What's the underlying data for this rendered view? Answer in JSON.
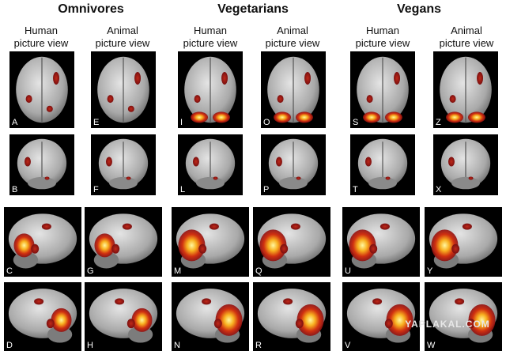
{
  "groups": [
    {
      "title": "Omnivores",
      "columns": [
        {
          "lines": [
            "Human",
            "picture view"
          ],
          "panels": [
            "A",
            "B",
            "C",
            "D"
          ]
        },
        {
          "lines": [
            "Animal",
            "picture view"
          ],
          "panels": [
            "E",
            "F",
            "G",
            "H"
          ]
        }
      ]
    },
    {
      "title": "Vegetarians",
      "columns": [
        {
          "lines": [
            "Human",
            "picture view"
          ],
          "panels": [
            "I",
            "L",
            "M",
            "N"
          ]
        },
        {
          "lines": [
            "Animal",
            "picture view"
          ],
          "panels": [
            "O",
            "P",
            "Q",
            "R"
          ]
        }
      ]
    },
    {
      "title": "Vegans",
      "columns": [
        {
          "lines": [
            "Human",
            "picture view"
          ],
          "panels": [
            "S",
            "T",
            "U",
            "V"
          ]
        },
        {
          "lines": [
            "Animal",
            "picture view"
          ],
          "panels": [
            "Z",
            "X",
            "Y",
            "W"
          ]
        }
      ]
    }
  ],
  "watermark": "YAPLAKAL.COM"
}
